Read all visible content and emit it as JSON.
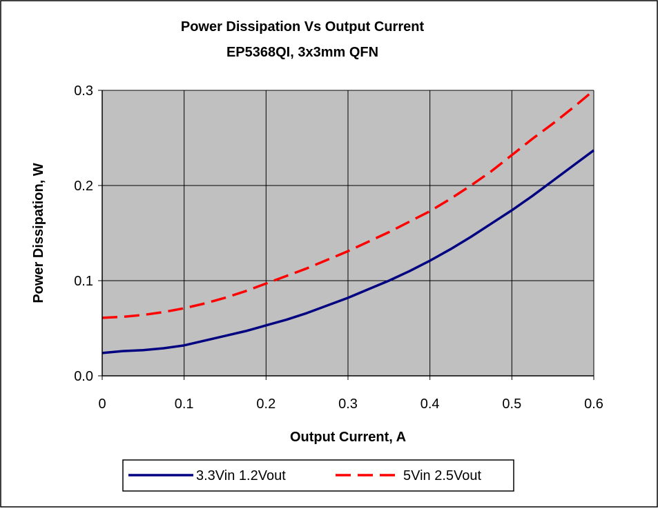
{
  "colors": {
    "plot_background": "#C0C0C0",
    "gridline": "#000000",
    "series_1": "#000080",
    "series_2": "#FF0000"
  },
  "chart_data": {
    "type": "line",
    "title": "Power Dissipation Vs Output Current",
    "subtitle": "EP5368QI, 3x3mm QFN",
    "xlabel": "Output Current, A",
    "ylabel": "Power Dissipation, W",
    "xlim": [
      0,
      0.6
    ],
    "ylim": [
      0,
      0.3
    ],
    "xticks": [
      "0",
      "0.1",
      "0.2",
      "0.3",
      "0.4",
      "0.5",
      "0.6"
    ],
    "yticks": [
      "0.0",
      "0.1",
      "0.2",
      "0.3"
    ],
    "grid": true,
    "legend_position": "bottom",
    "series": [
      {
        "name": "3.3Vin 1.2Vout",
        "line_style": "solid",
        "x": [
          0,
          0.025,
          0.05,
          0.075,
          0.1,
          0.125,
          0.15,
          0.175,
          0.2,
          0.225,
          0.25,
          0.275,
          0.3,
          0.325,
          0.35,
          0.375,
          0.4,
          0.425,
          0.45,
          0.475,
          0.5,
          0.525,
          0.55,
          0.575,
          0.6
        ],
        "y": [
          0.024,
          0.026,
          0.027,
          0.029,
          0.032,
          0.037,
          0.042,
          0.047,
          0.053,
          0.059,
          0.066,
          0.074,
          0.082,
          0.091,
          0.1,
          0.11,
          0.121,
          0.133,
          0.146,
          0.16,
          0.174,
          0.189,
          0.205,
          0.221,
          0.237
        ]
      },
      {
        "name": "5Vin 2.5Vout",
        "line_style": "dashed",
        "x": [
          0,
          0.025,
          0.05,
          0.075,
          0.1,
          0.125,
          0.15,
          0.175,
          0.2,
          0.225,
          0.25,
          0.275,
          0.3,
          0.325,
          0.35,
          0.375,
          0.4,
          0.425,
          0.45,
          0.475,
          0.5,
          0.525,
          0.55,
          0.575,
          0.6
        ],
        "y": [
          0.061,
          0.062,
          0.064,
          0.067,
          0.071,
          0.076,
          0.082,
          0.089,
          0.097,
          0.105,
          0.113,
          0.122,
          0.131,
          0.141,
          0.151,
          0.162,
          0.173,
          0.186,
          0.2,
          0.215,
          0.232,
          0.249,
          0.265,
          0.282,
          0.3
        ]
      }
    ]
  }
}
